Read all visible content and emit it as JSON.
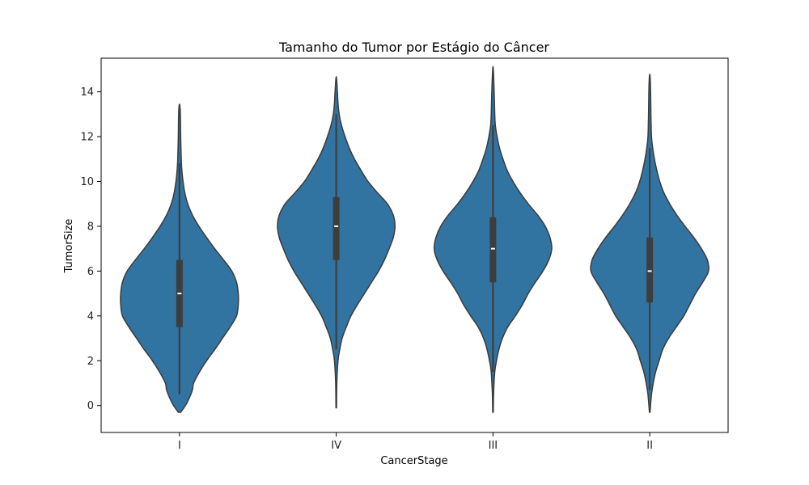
{
  "chart_data": {
    "type": "violin",
    "title": "Tamanho do Tumor por Estágio do Câncer",
    "xlabel": "CancerStage",
    "ylabel": "TumorSize",
    "categories": [
      "I",
      "IV",
      "III",
      "II"
    ],
    "ylim": [
      -1.2,
      15.5
    ],
    "yticks": [
      0,
      2,
      4,
      6,
      8,
      10,
      12,
      14
    ],
    "grid": false,
    "legend": "none",
    "colors": {
      "fill": "#3274a1",
      "outline": "#3a3a3a",
      "box": "#3d3d3d",
      "median": "#ffffff"
    },
    "violins": [
      {
        "category": "I",
        "range": [
          -0.3,
          13.4
        ],
        "q1": 3.5,
        "median": 5.0,
        "q3": 6.5,
        "whisker_low": 0.5,
        "whisker_high": 10.8,
        "profile": [
          [
            -0.3,
            0.02
          ],
          [
            0.0,
            0.1
          ],
          [
            0.3,
            0.16
          ],
          [
            0.7,
            0.22
          ],
          [
            1.0,
            0.24
          ],
          [
            1.5,
            0.34
          ],
          [
            2.0,
            0.46
          ],
          [
            2.5,
            0.6
          ],
          [
            3.0,
            0.73
          ],
          [
            3.5,
            0.86
          ],
          [
            4.0,
            0.97
          ],
          [
            4.5,
            1.0
          ],
          [
            5.0,
            1.0
          ],
          [
            5.5,
            0.97
          ],
          [
            6.0,
            0.89
          ],
          [
            6.5,
            0.75
          ],
          [
            7.0,
            0.6
          ],
          [
            7.5,
            0.46
          ],
          [
            8.0,
            0.33
          ],
          [
            8.5,
            0.22
          ],
          [
            9.0,
            0.14
          ],
          [
            9.5,
            0.09
          ],
          [
            10.0,
            0.06
          ],
          [
            10.5,
            0.04
          ],
          [
            11.0,
            0.03
          ],
          [
            12.0,
            0.02
          ],
          [
            13.0,
            0.015
          ],
          [
            13.4,
            0.005
          ]
        ]
      },
      {
        "category": "IV",
        "range": [
          -0.1,
          14.6
        ],
        "q1": 6.5,
        "median": 8.0,
        "q3": 9.3,
        "whisker_low": 2.5,
        "whisker_high": 13.0,
        "profile": [
          [
            -0.1,
            0.005
          ],
          [
            1.0,
            0.01
          ],
          [
            2.0,
            0.03
          ],
          [
            2.5,
            0.06
          ],
          [
            3.0,
            0.1
          ],
          [
            3.5,
            0.17
          ],
          [
            4.0,
            0.25
          ],
          [
            4.5,
            0.36
          ],
          [
            5.0,
            0.48
          ],
          [
            5.5,
            0.6
          ],
          [
            6.0,
            0.72
          ],
          [
            6.5,
            0.82
          ],
          [
            7.0,
            0.9
          ],
          [
            7.5,
            0.97
          ],
          [
            8.0,
            1.0
          ],
          [
            8.5,
            0.97
          ],
          [
            9.0,
            0.87
          ],
          [
            9.5,
            0.7
          ],
          [
            10.0,
            0.54
          ],
          [
            10.5,
            0.42
          ],
          [
            11.0,
            0.31
          ],
          [
            11.5,
            0.22
          ],
          [
            12.0,
            0.15
          ],
          [
            12.5,
            0.09
          ],
          [
            13.0,
            0.05
          ],
          [
            13.5,
            0.03
          ],
          [
            14.0,
            0.02
          ],
          [
            14.6,
            0.005
          ]
        ]
      },
      {
        "category": "III",
        "range": [
          -0.3,
          15.0
        ],
        "q1": 5.5,
        "median": 7.0,
        "q3": 8.4,
        "whisker_low": 1.5,
        "whisker_high": 12.5,
        "profile": [
          [
            -0.3,
            0.005
          ],
          [
            0.5,
            0.01
          ],
          [
            1.5,
            0.03
          ],
          [
            2.0,
            0.06
          ],
          [
            2.5,
            0.1
          ],
          [
            3.0,
            0.16
          ],
          [
            3.5,
            0.25
          ],
          [
            4.0,
            0.38
          ],
          [
            4.5,
            0.5
          ],
          [
            5.0,
            0.6
          ],
          [
            5.5,
            0.72
          ],
          [
            6.0,
            0.85
          ],
          [
            6.5,
            0.95
          ],
          [
            7.0,
            1.0
          ],
          [
            7.5,
            0.97
          ],
          [
            8.0,
            0.89
          ],
          [
            8.5,
            0.76
          ],
          [
            9.0,
            0.6
          ],
          [
            9.5,
            0.46
          ],
          [
            10.0,
            0.34
          ],
          [
            10.5,
            0.24
          ],
          [
            11.0,
            0.17
          ],
          [
            11.5,
            0.11
          ],
          [
            12.0,
            0.07
          ],
          [
            12.5,
            0.04
          ],
          [
            13.0,
            0.03
          ],
          [
            14.0,
            0.02
          ],
          [
            15.0,
            0.005
          ]
        ]
      },
      {
        "category": "II",
        "range": [
          -0.3,
          14.7
        ],
        "q1": 4.6,
        "median": 6.0,
        "q3": 7.5,
        "whisker_low": 0.7,
        "whisker_high": 11.5,
        "profile": [
          [
            -0.3,
            0.005
          ],
          [
            0.5,
            0.03
          ],
          [
            1.0,
            0.06
          ],
          [
            1.5,
            0.1
          ],
          [
            2.0,
            0.16
          ],
          [
            2.5,
            0.22
          ],
          [
            3.0,
            0.32
          ],
          [
            3.5,
            0.45
          ],
          [
            4.0,
            0.58
          ],
          [
            4.5,
            0.68
          ],
          [
            5.0,
            0.78
          ],
          [
            5.5,
            0.9
          ],
          [
            6.0,
            1.0
          ],
          [
            6.5,
            0.98
          ],
          [
            7.0,
            0.88
          ],
          [
            7.5,
            0.75
          ],
          [
            8.0,
            0.6
          ],
          [
            8.5,
            0.46
          ],
          [
            9.0,
            0.34
          ],
          [
            9.5,
            0.24
          ],
          [
            10.0,
            0.17
          ],
          [
            10.5,
            0.12
          ],
          [
            11.0,
            0.08
          ],
          [
            11.5,
            0.05
          ],
          [
            12.0,
            0.03
          ],
          [
            13.0,
            0.02
          ],
          [
            14.0,
            0.015
          ],
          [
            14.7,
            0.005
          ]
        ]
      }
    ]
  }
}
